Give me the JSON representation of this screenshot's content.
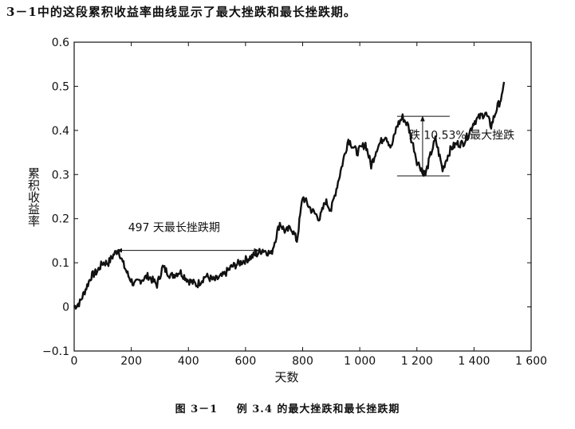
{
  "intro_text": "3－1中的这段累积收益率曲线显示了最大挫跌和最长挫跌期。",
  "caption": {
    "figure_no": "图 3－1",
    "text": "例 3.4 的最大挫跌和最长挫跌期"
  },
  "chart_data": {
    "type": "line",
    "xlabel": "天数",
    "ylabel": "累积收益率",
    "xlim": [
      0,
      1600
    ],
    "ylim": [
      -0.1,
      0.6
    ],
    "x_ticks": [
      0,
      200,
      400,
      600,
      800,
      1000,
      1200,
      1400,
      1600
    ],
    "x_tick_labels": [
      "0",
      "200",
      "400",
      "600",
      "800",
      "1 000",
      "1 200",
      "1 400",
      "1 600"
    ],
    "y_ticks": [
      -0.1,
      0,
      0.1,
      0.2,
      0.3,
      0.4,
      0.5,
      0.6
    ],
    "y_tick_labels": [
      "−0.1",
      "0",
      "0.1",
      "0.2",
      "0.3",
      "0.4",
      "0.5",
      "0.6"
    ],
    "grid": false,
    "series": [
      {
        "color": "#111111",
        "x": [
          0,
          20,
          40,
          60,
          80,
          100,
          120,
          140,
          155,
          170,
          190,
          210,
          230,
          260,
          290,
          310,
          340,
          370,
          400,
          430,
          460,
          490,
          520,
          550,
          580,
          610,
          640,
          660,
          690,
          720,
          740,
          760,
          780,
          800,
          830,
          860,
          880,
          900,
          930,
          960,
          990,
          1020,
          1040,
          1060,
          1090,
          1110,
          1130,
          1150,
          1160,
          1170,
          1180,
          1190,
          1200,
          1210,
          1230,
          1250,
          1265,
          1280,
          1290,
          1300,
          1320,
          1340,
          1360,
          1380,
          1400,
          1420,
          1440,
          1460,
          1480,
          1500,
          1505
        ],
        "y": [
          0.0,
          0.01,
          0.04,
          0.07,
          0.08,
          0.1,
          0.1,
          0.12,
          0.13,
          0.1,
          0.07,
          0.05,
          0.06,
          0.07,
          0.05,
          0.09,
          0.07,
          0.08,
          0.06,
          0.05,
          0.07,
          0.06,
          0.07,
          0.09,
          0.1,
          0.11,
          0.12,
          0.13,
          0.12,
          0.19,
          0.17,
          0.18,
          0.15,
          0.25,
          0.22,
          0.2,
          0.24,
          0.22,
          0.3,
          0.38,
          0.35,
          0.37,
          0.32,
          0.36,
          0.39,
          0.36,
          0.41,
          0.43,
          0.42,
          0.41,
          0.38,
          0.36,
          0.33,
          0.32,
          0.3,
          0.35,
          0.38,
          0.34,
          0.31,
          0.33,
          0.36,
          0.37,
          0.37,
          0.39,
          0.42,
          0.43,
          0.44,
          0.41,
          0.45,
          0.48,
          0.51
        ]
      }
    ],
    "annotations": {
      "longest_drawdown": {
        "label": "497 天最长挫跌期",
        "x_start": 150,
        "x_end": 647,
        "y": 0.128
      },
      "max_drawdown": {
        "label": "跌 10.53% 最大挫跌",
        "x": 1220,
        "y_top": 0.432,
        "y_bottom": 0.297,
        "label_x": 1245,
        "label_y": 0.39
      }
    }
  }
}
